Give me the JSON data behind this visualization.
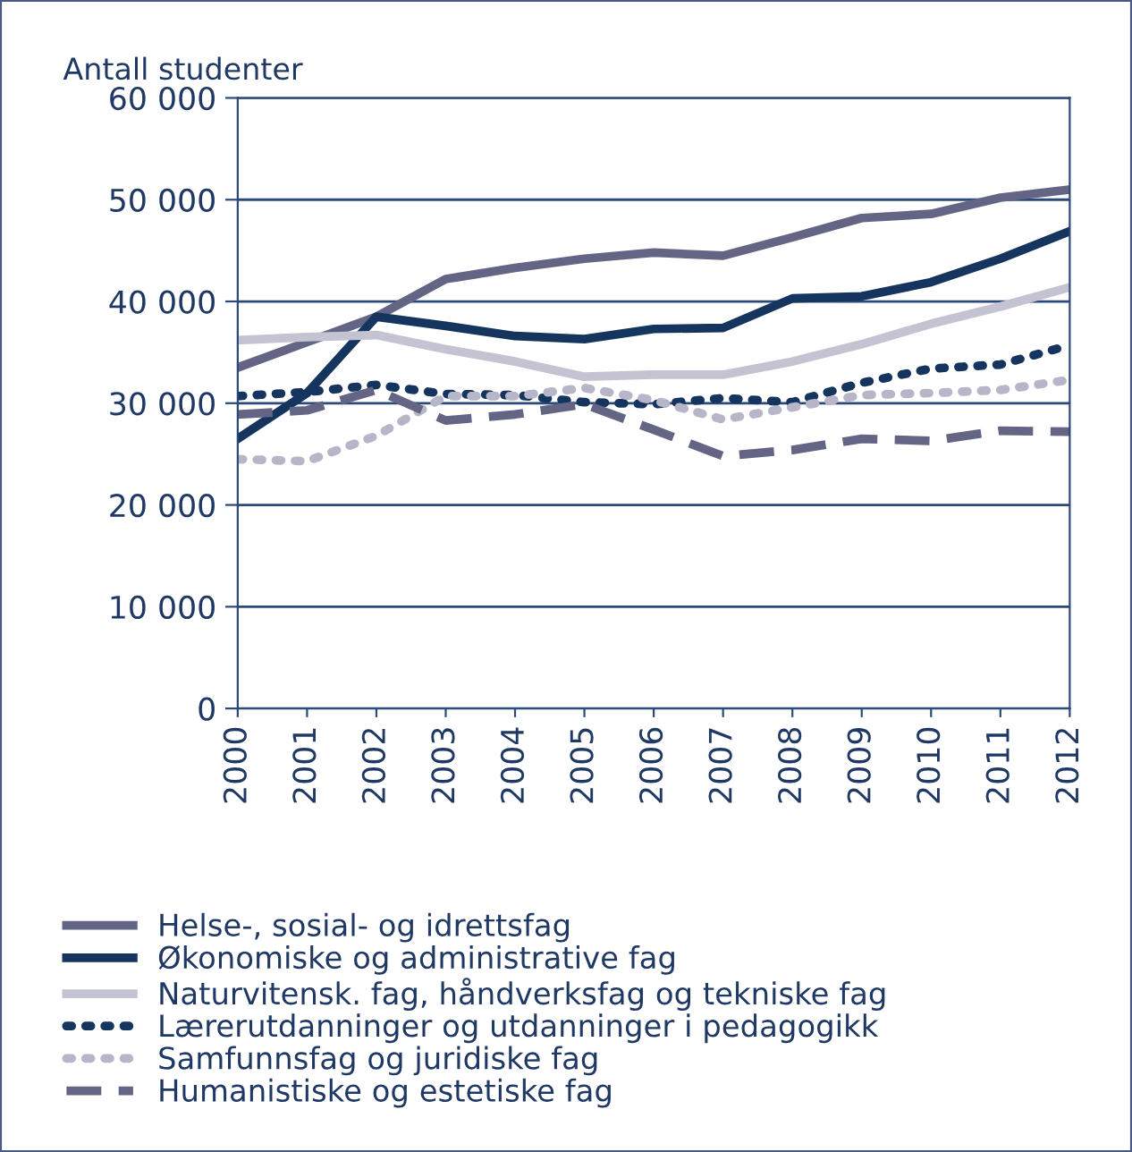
{
  "chart_data": {
    "type": "line",
    "ylabel": "Antall studenter",
    "categories": [
      "2000",
      "2001",
      "2002",
      "2003",
      "2004",
      "2005",
      "2006",
      "2007",
      "2008",
      "2009",
      "2010",
      "2011",
      "2012"
    ],
    "ylim": [
      0,
      60000
    ],
    "yticks": [
      {
        "value": 0,
        "label": "0"
      },
      {
        "value": 10000,
        "label": "10 000"
      },
      {
        "value": 20000,
        "label": "20 000"
      },
      {
        "value": 30000,
        "label": "30 000"
      },
      {
        "value": 40000,
        "label": "40 000"
      },
      {
        "value": 50000,
        "label": "50 000"
      },
      {
        "value": 60000,
        "label": "60 000"
      }
    ],
    "grid": "y",
    "legend": "bottom",
    "marker": "none",
    "series": [
      {
        "name": "Helse-, sosial- og idrettsfag",
        "color": "#646585",
        "line_style": "solid",
        "values": [
          33500,
          36000,
          38500,
          42200,
          43300,
          44200,
          44800,
          44500,
          46300,
          48200,
          48600,
          50200,
          51000
        ]
      },
      {
        "name": "Økonomiske og administrative fag",
        "color": "#15355e",
        "line_style": "solid",
        "values": [
          26500,
          31000,
          38500,
          37600,
          36600,
          36300,
          37300,
          37400,
          40300,
          40500,
          41900,
          44200,
          46900
        ]
      },
      {
        "name": "Naturvitensk. fag, håndverksfag og tekniske fag",
        "color": "#c3c3d1",
        "line_style": "solid",
        "values": [
          36200,
          36500,
          36700,
          35300,
          34100,
          32600,
          32800,
          32800,
          34100,
          35800,
          37800,
          39500,
          41400
        ]
      },
      {
        "name": "Lærerutdanninger og utdanninger i pedagogikk",
        "color": "#15355e",
        "line_style": "dotted",
        "values": [
          30700,
          31100,
          31800,
          30900,
          30800,
          30100,
          29900,
          30500,
          30100,
          32000,
          33400,
          33800,
          35700
        ]
      },
      {
        "name": "Samfunnsfag og juridiske fag",
        "color": "#b6b6c8",
        "line_style": "dotted",
        "values": [
          24500,
          24300,
          26800,
          30700,
          30700,
          31500,
          30300,
          28400,
          29600,
          30800,
          31000,
          31300,
          32300
        ]
      },
      {
        "name": "Humanistiske og estetiske fag",
        "color": "#646585",
        "line_style": "dashed",
        "values": [
          28900,
          29300,
          31300,
          28300,
          28900,
          29900,
          27400,
          24800,
          25400,
          26500,
          26300,
          27300,
          27200
        ]
      }
    ]
  }
}
